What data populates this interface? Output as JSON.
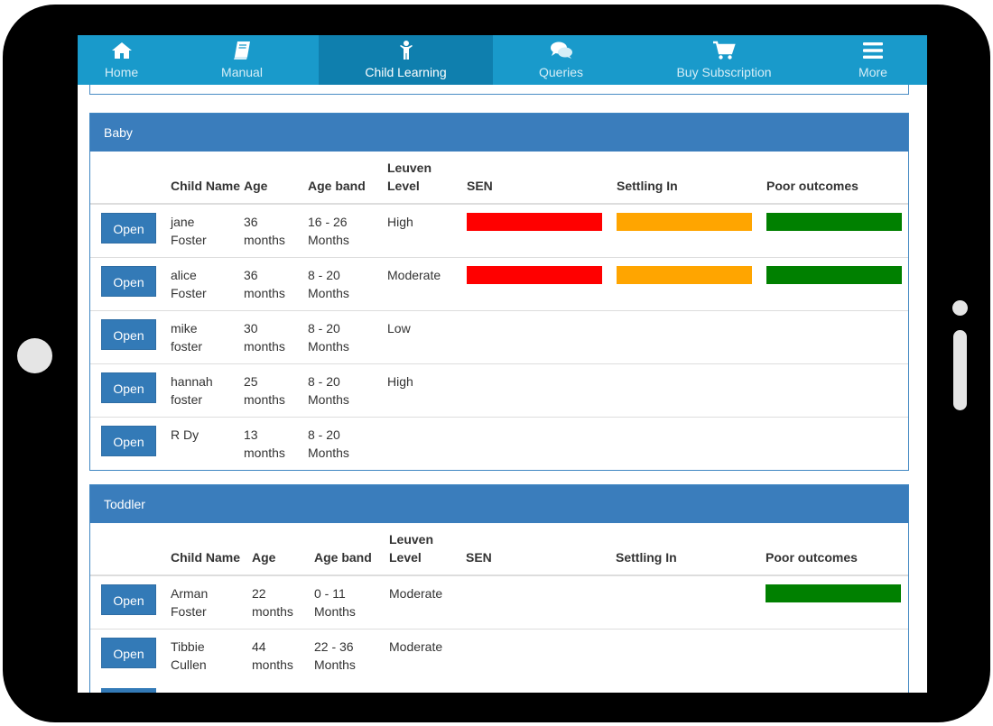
{
  "nav": {
    "items": [
      {
        "label": "Home",
        "icon": "home-icon",
        "active": false
      },
      {
        "label": "Manual",
        "icon": "book-icon",
        "active": false
      },
      {
        "label": "Child Learning",
        "icon": "child-icon",
        "active": true
      },
      {
        "label": "Queries",
        "icon": "chat-icon",
        "active": false
      },
      {
        "label": "Buy Subscription",
        "icon": "cart-icon",
        "active": false
      },
      {
        "label": "More",
        "icon": "menu-icon",
        "active": false
      }
    ]
  },
  "columns": [
    "Child Name",
    "Age",
    "Age band",
    "Leuven Level",
    "SEN",
    "Settling In",
    "Poor outcomes"
  ],
  "open_label": "Open",
  "colors": {
    "red": "#ff0000",
    "orange": "#ffa500",
    "green": "#008000",
    "header": "#3a7dbc",
    "nav": "#199acb"
  },
  "baby": {
    "title": "Baby",
    "rows": [
      {
        "name": "jane Foster",
        "age": "36 months",
        "band": "16 - 26 Months",
        "leuven": "High",
        "sen": "red",
        "settling": "orange",
        "poor": "green"
      },
      {
        "name": "alice Foster",
        "age": "36 months",
        "band": "8 - 20 Months",
        "leuven": "Moderate",
        "sen": "red",
        "settling": "orange",
        "poor": "green"
      },
      {
        "name": "mike foster",
        "age": "30 months",
        "band": "8 - 20 Months",
        "leuven": "Low",
        "sen": "",
        "settling": "",
        "poor": ""
      },
      {
        "name": "hannah foster",
        "age": "25 months",
        "band": "8 - 20 Months",
        "leuven": "High",
        "sen": "",
        "settling": "",
        "poor": ""
      },
      {
        "name": "R Dy",
        "age": "13 months",
        "band": "8 - 20 Months",
        "leuven": "",
        "sen": "",
        "settling": "",
        "poor": ""
      }
    ]
  },
  "toddler": {
    "title": "Toddler",
    "rows": [
      {
        "name": "Arman Foster",
        "age": "22 months",
        "band": "0 - 11 Months",
        "leuven": "Moderate",
        "sen": "",
        "settling": "",
        "poor": "green"
      },
      {
        "name": "Tibbie Cullen",
        "age": "44 months",
        "band": "22 - 36 Months",
        "leuven": "Moderate",
        "sen": "",
        "settling": "",
        "poor": ""
      }
    ]
  }
}
